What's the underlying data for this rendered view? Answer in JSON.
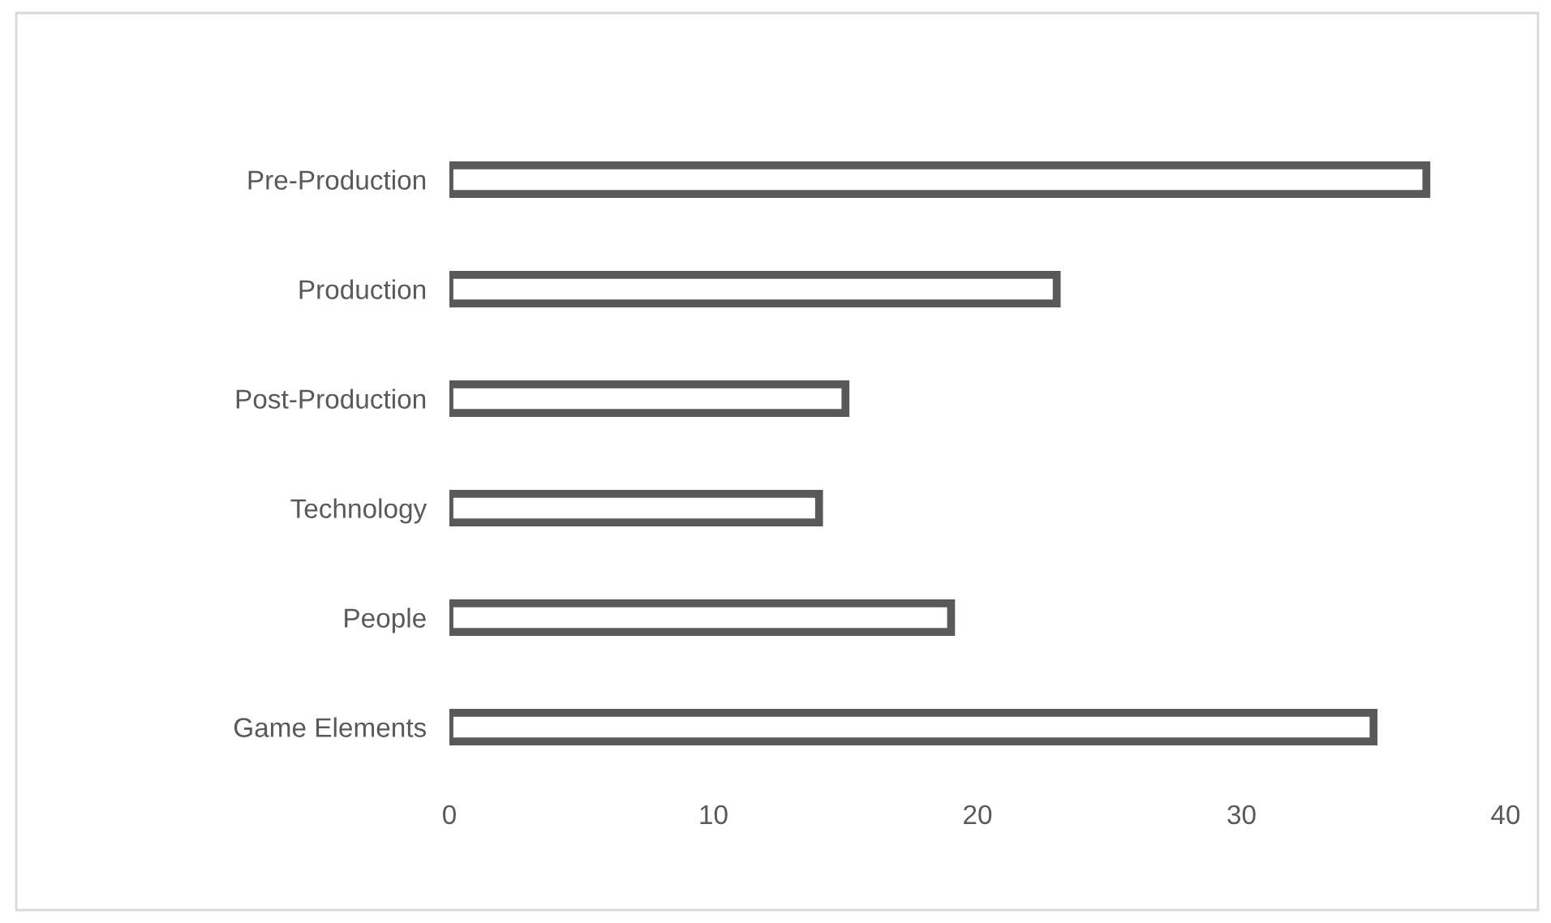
{
  "chart_data": {
    "type": "bar",
    "orientation": "horizontal",
    "categories": [
      "Pre-Production",
      "Production",
      "Post-Production",
      "Technology",
      "People",
      "Game Elements"
    ],
    "values": [
      37,
      23,
      15,
      14,
      19,
      35
    ],
    "color": "#595959",
    "xlim": [
      0,
      40
    ],
    "xticks": [
      0,
      10,
      20,
      30,
      40
    ],
    "grid": false,
    "legend": false
  }
}
